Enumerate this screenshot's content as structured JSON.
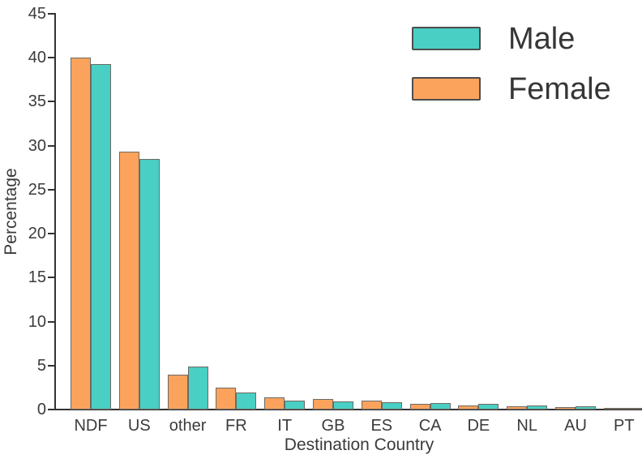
{
  "chart_data": {
    "type": "bar",
    "title": "",
    "xlabel": "Destination Country",
    "ylabel": "Percentage",
    "categories": [
      "NDF",
      "US",
      "other",
      "FR",
      "IT",
      "GB",
      "ES",
      "CA",
      "DE",
      "NL",
      "AU",
      "PT"
    ],
    "series": [
      {
        "name": "Male",
        "color": "#49CFC3",
        "values": [
          39.3,
          28.5,
          4.9,
          1.9,
          1.0,
          0.9,
          0.85,
          0.75,
          0.65,
          0.5,
          0.35,
          0.2
        ]
      },
      {
        "name": "Female",
        "color": "#FBA35D",
        "values": [
          40.0,
          29.3,
          4.0,
          2.5,
          1.4,
          1.2,
          1.05,
          0.6,
          0.45,
          0.35,
          0.25,
          0.1
        ]
      }
    ],
    "bar_draw_order": [
      "Female",
      "Male"
    ],
    "ylim": [
      0,
      45
    ],
    "yticks": [
      0,
      5,
      10,
      15,
      20,
      25,
      30,
      35,
      40,
      45
    ],
    "grid": false,
    "legend_position": "upper-right",
    "bar_edge_color": "#6e6a64",
    "axis_color": "#333333",
    "text_color": "#3b3b3b",
    "background_color": "#ffffff"
  }
}
